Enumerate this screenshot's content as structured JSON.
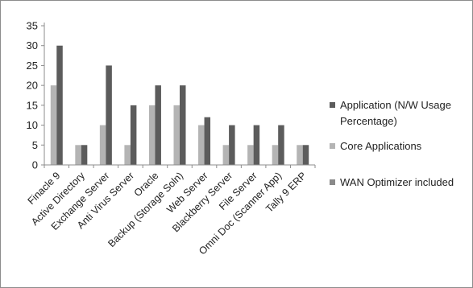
{
  "chart_data": {
    "type": "bar",
    "categories": [
      "Finacle 9",
      "Active Directory",
      "Exchange Server",
      "Anti Virus Server",
      "Oracle",
      "Backup (Storage Soln)",
      "Web Server",
      "Blackberry Server",
      "File Server",
      "Omni Doc (Scanner App)",
      "Tally 9 ERP"
    ],
    "series": [
      {
        "name": "Application (N/W Usage Percentage)",
        "legend_lines": [
          "Application (N/W Usage",
          "Percentage)"
        ],
        "color": "#5c5c5c",
        "values": [
          30,
          5,
          25,
          15,
          20,
          20,
          12,
          10,
          10,
          10,
          5
        ]
      },
      {
        "name": "Core Applications",
        "legend_lines": [
          "Core Applications"
        ],
        "color": "#b4b4b4",
        "values": [
          20,
          5,
          10,
          5,
          15,
          15,
          10,
          5,
          5,
          5,
          5
        ]
      },
      {
        "name": "WAN Optimizer included",
        "legend_lines": [
          "WAN Optimizer included"
        ],
        "color": "#8a8a8a",
        "values": [
          0,
          0,
          0,
          0,
          0,
          0,
          0,
          0,
          0,
          0,
          0
        ]
      }
    ],
    "ylim": [
      0,
      35
    ],
    "yticks": [
      0,
      5,
      10,
      15,
      20,
      25,
      30,
      35
    ],
    "legend_position": "right",
    "grid": false
  }
}
